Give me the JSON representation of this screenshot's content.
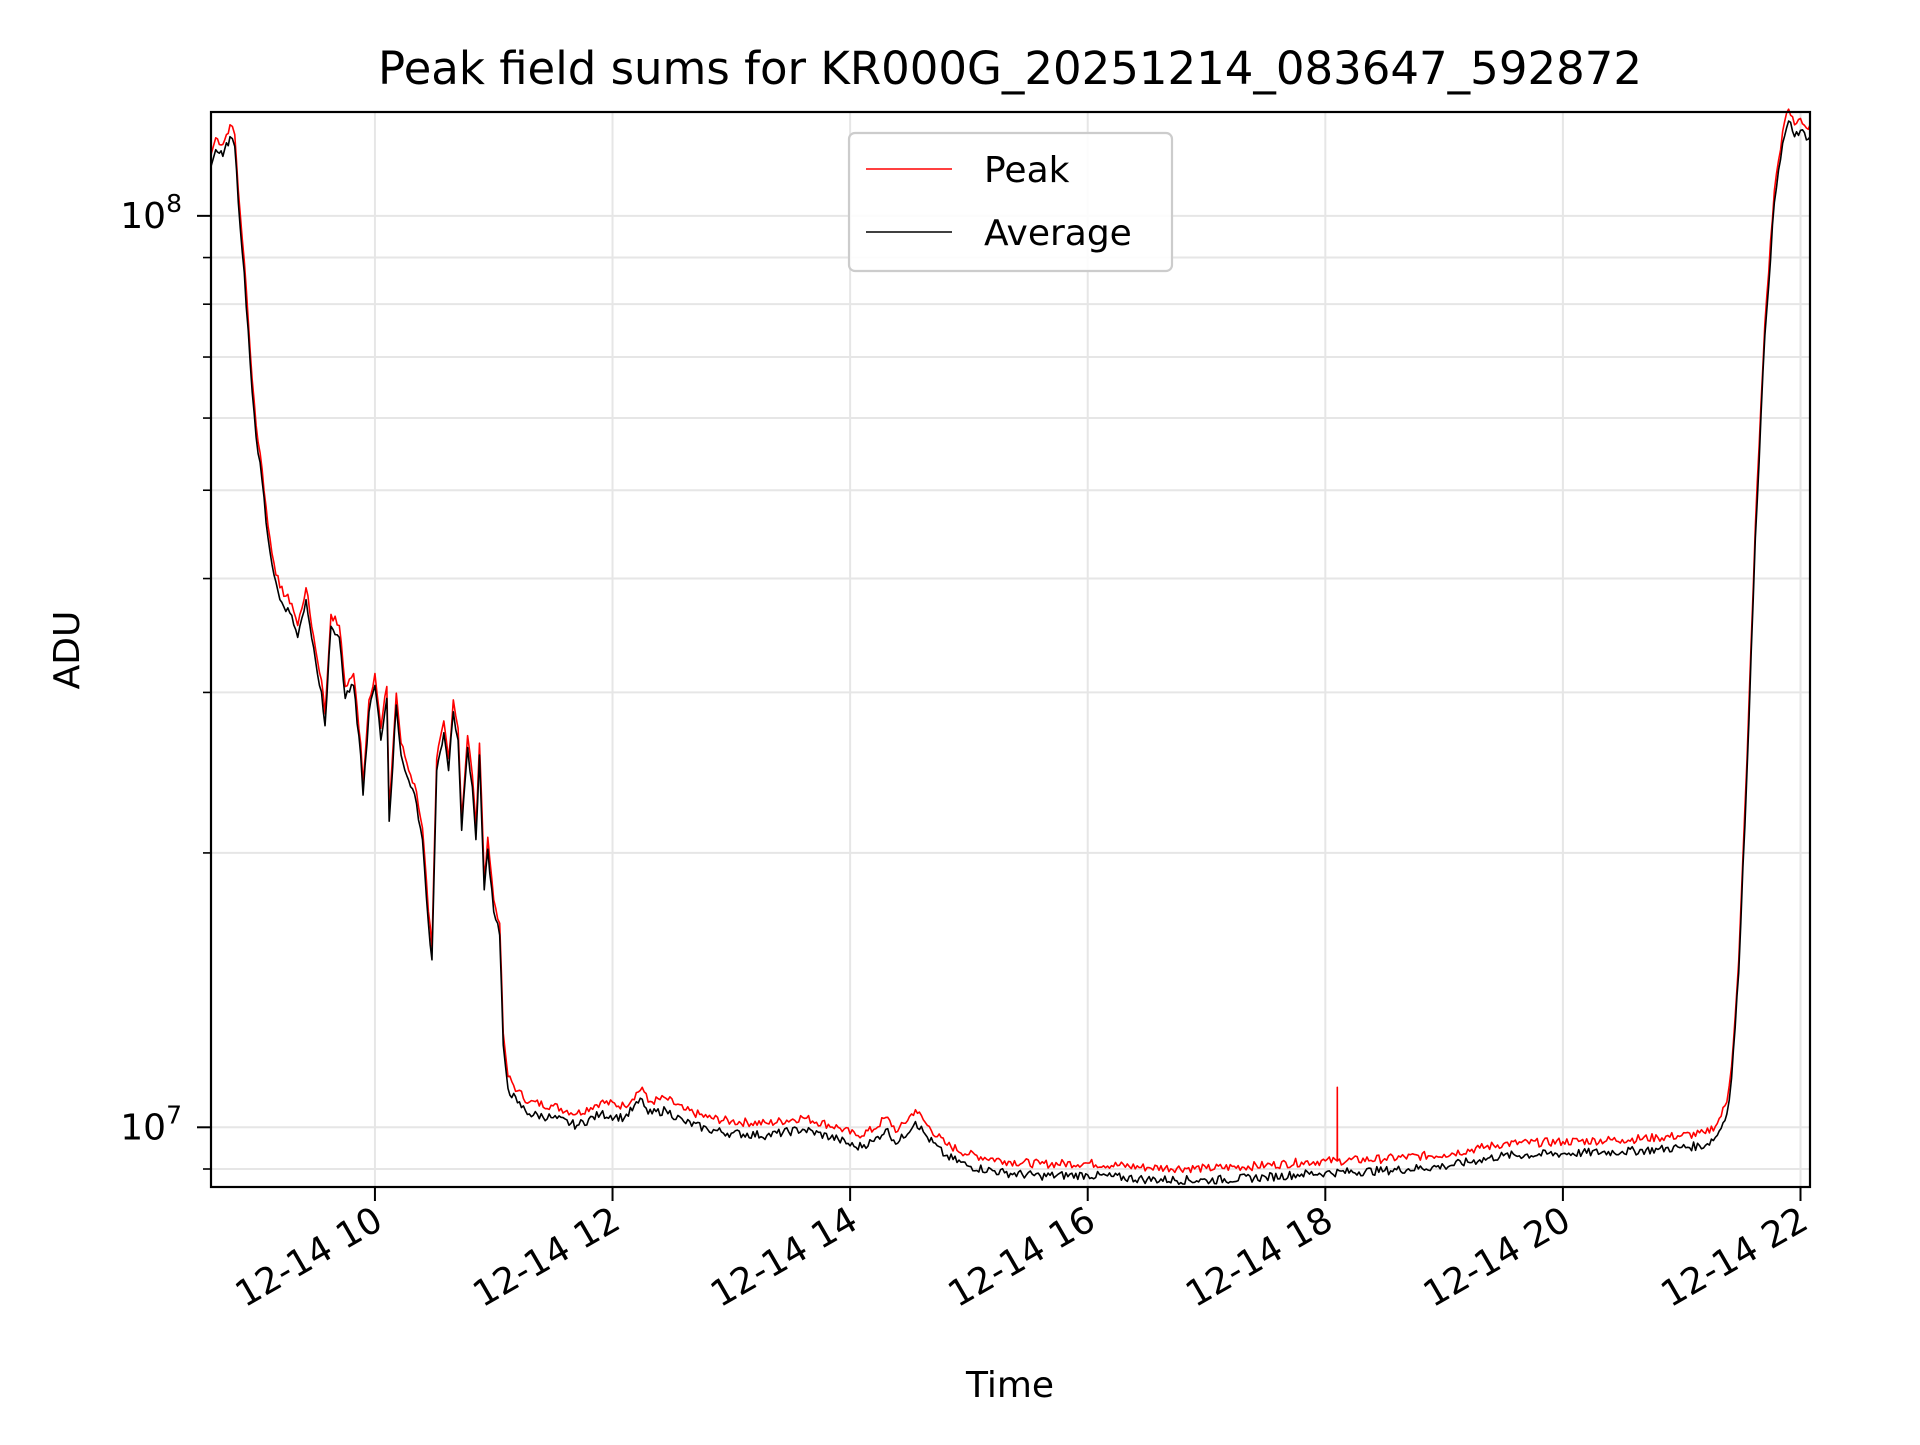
{
  "chart_data": {
    "type": "line",
    "title": "Peak field sums for KR000G_20251214_083647_592872",
    "xlabel": "Time",
    "ylabel": "ADU",
    "yscale": "log",
    "xlim_hours": [
      8.62,
      22.08
    ],
    "ylim": [
      8600000,
      130000000
    ],
    "grid": true,
    "legend_position": "upper center",
    "x_ticks": [
      {
        "value": 10,
        "label": "12-14 10"
      },
      {
        "value": 12,
        "label": "12-14 12"
      },
      {
        "value": 14,
        "label": "12-14 14"
      },
      {
        "value": 16,
        "label": "12-14 16"
      },
      {
        "value": 18,
        "label": "12-14 18"
      },
      {
        "value": 20,
        "label": "12-14 20"
      },
      {
        "value": 22,
        "label": "12-14 22"
      }
    ],
    "y_major_ticks": [
      {
        "value": 10000000,
        "base": "10",
        "exp": "7"
      },
      {
        "value": 100000000,
        "base": "10",
        "exp": "8"
      }
    ],
    "y_minor_ticks": [
      9000000,
      20000000,
      30000000,
      40000000,
      50000000,
      60000000,
      70000000,
      80000000,
      90000000
    ],
    "series": [
      {
        "name": "Peak",
        "color": "#ff0000",
        "offset_factor": 1.015,
        "points": [
          [
            8.62,
            115000000
          ],
          [
            8.66,
            120000000
          ],
          [
            8.72,
            118000000
          ],
          [
            8.78,
            124000000
          ],
          [
            8.82,
            121000000
          ],
          [
            8.85,
            105000000
          ],
          [
            8.9,
            88000000
          ],
          [
            8.95,
            70000000
          ],
          [
            9.0,
            58000000
          ],
          [
            9.05,
            52000000
          ],
          [
            9.1,
            45000000
          ],
          [
            9.15,
            41000000
          ],
          [
            9.2,
            38500000
          ],
          [
            9.3,
            37000000
          ],
          [
            9.35,
            35000000
          ],
          [
            9.42,
            38500000
          ],
          [
            9.5,
            33000000
          ],
          [
            9.55,
            30500000
          ],
          [
            9.58,
            28000000
          ],
          [
            9.63,
            36000000
          ],
          [
            9.7,
            35000000
          ],
          [
            9.75,
            30000000
          ],
          [
            9.82,
            31000000
          ],
          [
            9.88,
            26000000
          ],
          [
            9.9,
            23500000
          ],
          [
            9.95,
            29000000
          ],
          [
            10.0,
            31000000
          ],
          [
            10.05,
            27000000
          ],
          [
            10.1,
            30000000
          ],
          [
            10.12,
            22000000
          ],
          [
            10.18,
            29500000
          ],
          [
            10.22,
            26000000
          ],
          [
            10.3,
            24000000
          ],
          [
            10.35,
            23000000
          ],
          [
            10.4,
            21000000
          ],
          [
            10.45,
            17000000
          ],
          [
            10.48,
            15500000
          ],
          [
            10.52,
            25000000
          ],
          [
            10.58,
            27500000
          ],
          [
            10.62,
            25000000
          ],
          [
            10.66,
            29000000
          ],
          [
            10.7,
            27000000
          ],
          [
            10.73,
            21500000
          ],
          [
            10.78,
            26500000
          ],
          [
            10.82,
            24000000
          ],
          [
            10.85,
            21000000
          ],
          [
            10.88,
            26000000
          ],
          [
            10.92,
            18500000
          ],
          [
            10.95,
            20500000
          ],
          [
            11.0,
            17500000
          ],
          [
            11.05,
            16500000
          ],
          [
            11.08,
            12500000
          ],
          [
            11.12,
            11200000
          ],
          [
            11.2,
            10800000
          ],
          [
            11.3,
            10500000
          ],
          [
            11.5,
            10400000
          ],
          [
            11.7,
            10200000
          ],
          [
            11.9,
            10500000
          ],
          [
            12.1,
            10400000
          ],
          [
            12.25,
            10900000
          ],
          [
            12.3,
            10500000
          ],
          [
            12.45,
            10600000
          ],
          [
            12.6,
            10300000
          ],
          [
            12.8,
            10100000
          ],
          [
            13.0,
            10000000
          ],
          [
            13.3,
            9950000
          ],
          [
            13.6,
            10100000
          ],
          [
            13.9,
            9850000
          ],
          [
            14.05,
            9650000
          ],
          [
            14.2,
            9800000
          ],
          [
            14.3,
            10100000
          ],
          [
            14.4,
            9750000
          ],
          [
            14.55,
            10300000
          ],
          [
            14.65,
            9900000
          ],
          [
            14.8,
            9450000
          ],
          [
            15.0,
            9200000
          ],
          [
            15.3,
            9050000
          ],
          [
            15.6,
            8980000
          ],
          [
            16.0,
            9000000
          ],
          [
            16.5,
            8900000
          ],
          [
            17.0,
            8880000
          ],
          [
            17.5,
            8950000
          ],
          [
            17.8,
            9020000
          ],
          [
            18.0,
            9050000
          ],
          [
            18.1,
            9050000
          ],
          [
            18.101,
            10900000
          ],
          [
            18.102,
            9050000
          ],
          [
            18.5,
            9100000
          ],
          [
            19.0,
            9200000
          ],
          [
            19.3,
            9350000
          ],
          [
            19.5,
            9450000
          ],
          [
            20.0,
            9500000
          ],
          [
            20.5,
            9550000
          ],
          [
            20.8,
            9600000
          ],
          [
            21.0,
            9650000
          ],
          [
            21.2,
            9700000
          ],
          [
            21.3,
            9950000
          ],
          [
            21.38,
            10500000
          ],
          [
            21.42,
            11500000
          ],
          [
            21.48,
            15000000
          ],
          [
            21.55,
            25000000
          ],
          [
            21.62,
            45000000
          ],
          [
            21.7,
            75000000
          ],
          [
            21.78,
            105000000
          ],
          [
            21.85,
            122000000
          ],
          [
            21.9,
            129000000
          ],
          [
            21.95,
            124000000
          ],
          [
            22.0,
            126000000
          ],
          [
            22.05,
            123000000
          ],
          [
            22.08,
            124000000
          ]
        ]
      },
      {
        "name": "Average",
        "color": "#000000",
        "offset_factor": 0.985,
        "points": [
          [
            8.62,
            115000000
          ],
          [
            8.66,
            120000000
          ],
          [
            8.72,
            118000000
          ],
          [
            8.78,
            124000000
          ],
          [
            8.82,
            121000000
          ],
          [
            8.85,
            105000000
          ],
          [
            8.9,
            88000000
          ],
          [
            8.95,
            70000000
          ],
          [
            9.0,
            58000000
          ],
          [
            9.05,
            52000000
          ],
          [
            9.1,
            45000000
          ],
          [
            9.15,
            41000000
          ],
          [
            9.2,
            38500000
          ],
          [
            9.3,
            37000000
          ],
          [
            9.35,
            35000000
          ],
          [
            9.42,
            38500000
          ],
          [
            9.5,
            33000000
          ],
          [
            9.55,
            30500000
          ],
          [
            9.58,
            28000000
          ],
          [
            9.63,
            36000000
          ],
          [
            9.7,
            35000000
          ],
          [
            9.75,
            30000000
          ],
          [
            9.82,
            31000000
          ],
          [
            9.88,
            26000000
          ],
          [
            9.9,
            23500000
          ],
          [
            9.95,
            29000000
          ],
          [
            10.0,
            31000000
          ],
          [
            10.05,
            27000000
          ],
          [
            10.1,
            30000000
          ],
          [
            10.12,
            22000000
          ],
          [
            10.18,
            29500000
          ],
          [
            10.22,
            26000000
          ],
          [
            10.3,
            24000000
          ],
          [
            10.35,
            23000000
          ],
          [
            10.4,
            21000000
          ],
          [
            10.45,
            17000000
          ],
          [
            10.48,
            15500000
          ],
          [
            10.52,
            25000000
          ],
          [
            10.58,
            27500000
          ],
          [
            10.62,
            25000000
          ],
          [
            10.66,
            29000000
          ],
          [
            10.7,
            27000000
          ],
          [
            10.73,
            21500000
          ],
          [
            10.78,
            26500000
          ],
          [
            10.82,
            24000000
          ],
          [
            10.85,
            21000000
          ],
          [
            10.88,
            26000000
          ],
          [
            10.92,
            18500000
          ],
          [
            10.95,
            20500000
          ],
          [
            11.0,
            17500000
          ],
          [
            11.05,
            16500000
          ],
          [
            11.08,
            12500000
          ],
          [
            11.12,
            11200000
          ],
          [
            11.2,
            10800000
          ],
          [
            11.3,
            10500000
          ],
          [
            11.5,
            10400000
          ],
          [
            11.7,
            10200000
          ],
          [
            11.9,
            10500000
          ],
          [
            12.1,
            10400000
          ],
          [
            12.25,
            10900000
          ],
          [
            12.3,
            10500000
          ],
          [
            12.45,
            10600000
          ],
          [
            12.6,
            10300000
          ],
          [
            12.8,
            10100000
          ],
          [
            13.0,
            10000000
          ],
          [
            13.3,
            9950000
          ],
          [
            13.6,
            10100000
          ],
          [
            13.9,
            9850000
          ],
          [
            14.05,
            9650000
          ],
          [
            14.2,
            9800000
          ],
          [
            14.3,
            10100000
          ],
          [
            14.4,
            9750000
          ],
          [
            14.55,
            10300000
          ],
          [
            14.65,
            9900000
          ],
          [
            14.8,
            9450000
          ],
          [
            15.0,
            9200000
          ],
          [
            15.3,
            9050000
          ],
          [
            15.6,
            8980000
          ],
          [
            16.0,
            9000000
          ],
          [
            16.5,
            8900000
          ],
          [
            17.0,
            8880000
          ],
          [
            17.5,
            8950000
          ],
          [
            17.8,
            9020000
          ],
          [
            18.0,
            9050000
          ],
          [
            18.5,
            9100000
          ],
          [
            19.0,
            9200000
          ],
          [
            19.3,
            9350000
          ],
          [
            19.5,
            9450000
          ],
          [
            20.0,
            9500000
          ],
          [
            20.5,
            9550000
          ],
          [
            20.8,
            9600000
          ],
          [
            21.0,
            9650000
          ],
          [
            21.2,
            9700000
          ],
          [
            21.3,
            9950000
          ],
          [
            21.38,
            10500000
          ],
          [
            21.42,
            11500000
          ],
          [
            21.48,
            15000000
          ],
          [
            21.55,
            25000000
          ],
          [
            21.62,
            45000000
          ],
          [
            21.7,
            75000000
          ],
          [
            21.78,
            105000000
          ],
          [
            21.85,
            122000000
          ],
          [
            21.9,
            129000000
          ],
          [
            21.95,
            124000000
          ],
          [
            22.0,
            126000000
          ],
          [
            22.05,
            123000000
          ],
          [
            22.08,
            124000000
          ]
        ]
      }
    ]
  }
}
